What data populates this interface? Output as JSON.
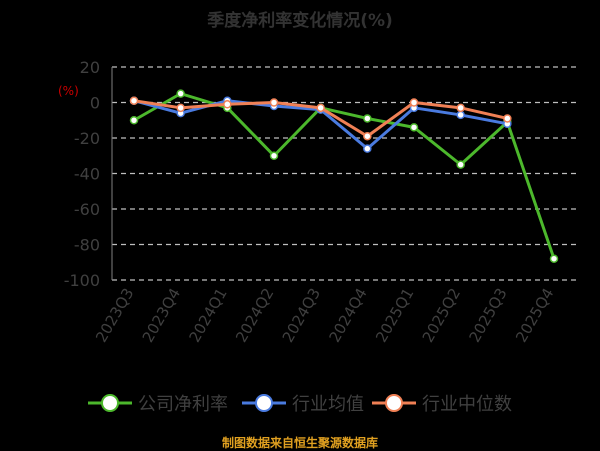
{
  "chart_data": {
    "type": "line",
    "title": "季度净利率变化情况(%)",
    "unit": "(%)",
    "categories": [
      "2023Q3",
      "2023Q4",
      "2024Q1",
      "2024Q2",
      "2024Q3",
      "2024Q4",
      "2025Q1",
      "2025Q2",
      "2025Q3",
      "2025Q4"
    ],
    "ylim": [
      -100,
      20
    ],
    "yticks": [
      20,
      0,
      -20,
      -40,
      -60,
      -80,
      -100
    ],
    "grid": true,
    "legend_position": "bottom",
    "series": [
      {
        "name": "公司净利率",
        "color": "#4cb82c",
        "values": [
          -10,
          5,
          -3,
          -30,
          -3,
          -9,
          -14,
          -35,
          -11,
          -88
        ]
      },
      {
        "name": "行业均值",
        "color": "#4a7be0",
        "values": [
          1,
          -6,
          1,
          -2,
          -4,
          -26,
          -3,
          -7,
          -12,
          null
        ]
      },
      {
        "name": "行业中位数",
        "color": "#f08055",
        "values": [
          1,
          -3,
          -1,
          0,
          -3,
          -19,
          0,
          -3,
          -9,
          null
        ]
      }
    ]
  },
  "source": "制图数据来自恒生聚源数据库"
}
